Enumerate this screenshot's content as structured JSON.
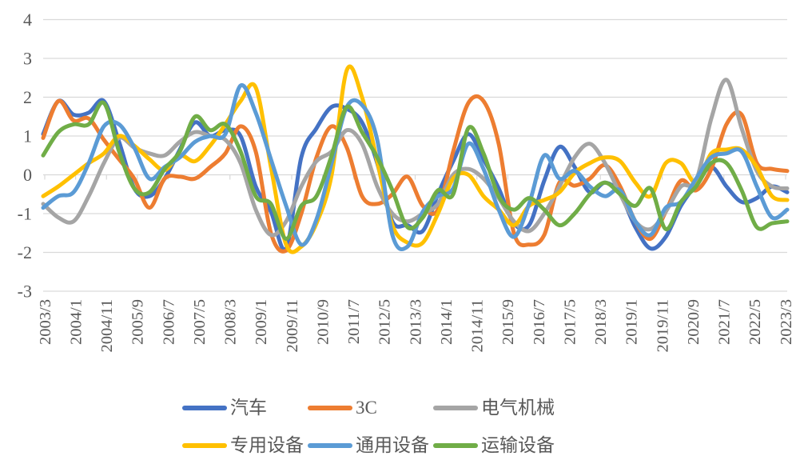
{
  "chart_data": {
    "type": "line",
    "title": "",
    "xlabel": "",
    "ylabel": "",
    "x_start": "2003/3",
    "x_step_months": 5,
    "x_tick_labels": [
      "2003/3",
      "2004/1",
      "2004/11",
      "2005/9",
      "2006/7",
      "2007/5",
      "2008/3",
      "2009/1",
      "2009/11",
      "2010/9",
      "2011/7",
      "2012/5",
      "2013/3",
      "2014/1",
      "2014/11",
      "2015/9",
      "2016/7",
      "2017/5",
      "2018/3",
      "2019/1",
      "2019/11",
      "2020/9",
      "2021/7",
      "2022/5",
      "2023/3"
    ],
    "y_ticks": [
      4,
      3,
      2,
      1,
      0,
      -1,
      -2,
      -3
    ],
    "ylim": [
      -3,
      4
    ],
    "grid": true,
    "smooth": true,
    "legend_position": "bottom",
    "axis_text_color": "#595959",
    "grid_color": "#D9D9D9",
    "series": [
      {
        "name": "汽车",
        "color": "#4472C4",
        "values": [
          1.05,
          1.9,
          1.55,
          1.6,
          1.9,
          0.85,
          -0.35,
          -0.55,
          -0.1,
          0.65,
          1.35,
          1.0,
          1.15,
          1.0,
          -0.3,
          -0.95,
          -1.9,
          0.45,
          1.2,
          1.75,
          1.7,
          1.35,
          0.3,
          -1.2,
          -1.3,
          -1.45,
          -0.5,
          0.35,
          1.05,
          0.4,
          -0.35,
          -1.25,
          -1.3,
          -0.15,
          0.72,
          0.2,
          -0.45,
          -0.2,
          -0.5,
          -1.35,
          -1.9,
          -1.6,
          -0.8,
          -0.25,
          0.2,
          -0.3,
          -0.7,
          -0.6,
          -0.3,
          -0.45
        ]
      },
      {
        "name": "3C",
        "color": "#ED7D31",
        "values": [
          0.95,
          1.9,
          1.4,
          1.45,
          0.9,
          0.4,
          -0.1,
          -0.85,
          -0.1,
          -0.05,
          -0.1,
          0.2,
          0.55,
          1.25,
          0.6,
          -1.5,
          -1.95,
          -1.0,
          0.45,
          1.25,
          0.7,
          -0.55,
          -0.75,
          -0.5,
          -0.05,
          -0.8,
          -0.9,
          0.6,
          1.85,
          1.9,
          0.8,
          -1.5,
          -1.8,
          -1.55,
          -0.2,
          -0.28,
          -0.1,
          0.25,
          -0.3,
          -1.2,
          -1.65,
          -0.95,
          -0.15,
          -0.4,
          0.15,
          1.3,
          1.55,
          0.3,
          0.15,
          0.1
        ]
      },
      {
        "name": "电气机械",
        "color": "#A5A5A5",
        "values": [
          -0.75,
          -1.1,
          -1.2,
          -0.55,
          0.3,
          0.95,
          0.7,
          0.55,
          0.5,
          0.85,
          1.1,
          1.0,
          0.9,
          0.3,
          -0.9,
          -1.55,
          -1.2,
          -0.3,
          0.35,
          0.6,
          1.15,
          0.8,
          -0.3,
          -1.0,
          -1.2,
          -1.0,
          -0.75,
          0.0,
          0.15,
          -0.1,
          -0.6,
          -1.2,
          -1.45,
          -1.0,
          -0.3,
          0.45,
          0.8,
          0.3,
          -0.5,
          -1.2,
          -1.4,
          -0.95,
          -0.3,
          -0.15,
          1.45,
          2.45,
          1.2,
          0.1,
          -0.3,
          -0.35
        ]
      },
      {
        "name": "专用设备",
        "color": "#FFC000",
        "values": [
          -0.55,
          -0.3,
          0.0,
          0.3,
          0.55,
          1.0,
          0.75,
          0.4,
          0.12,
          0.5,
          0.35,
          0.75,
          1.3,
          1.9,
          2.25,
          0.2,
          -1.8,
          -1.85,
          -1.25,
          0.0,
          2.7,
          2.0,
          0.35,
          -1.3,
          -1.75,
          -1.75,
          -1.0,
          -0.1,
          0.0,
          -0.55,
          -0.9,
          -1.3,
          -0.8,
          -0.65,
          -0.45,
          0.05,
          0.3,
          0.45,
          0.35,
          -0.2,
          -0.55,
          0.3,
          0.3,
          -0.2,
          0.55,
          0.65,
          0.65,
          0.2,
          -0.55,
          -0.65
        ]
      },
      {
        "name": "通用设备",
        "color": "#5B9BD5",
        "values": [
          -0.85,
          -0.55,
          -0.45,
          0.3,
          1.25,
          1.3,
          0.7,
          -0.1,
          0.2,
          0.45,
          0.85,
          1.0,
          1.05,
          2.3,
          1.6,
          0.4,
          -0.8,
          -1.8,
          -1.15,
          0.3,
          1.75,
          1.8,
          0.9,
          -1.55,
          -1.85,
          -0.95,
          -0.55,
          -0.35,
          0.8,
          0.15,
          -0.9,
          -1.6,
          -0.75,
          0.5,
          -0.1,
          0.1,
          -0.3,
          -0.55,
          -0.4,
          -1.2,
          -1.55,
          -0.85,
          -0.7,
          -0.1,
          0.45,
          0.55,
          0.6,
          -0.3,
          -1.1,
          -0.9
        ]
      },
      {
        "name": "运输设备",
        "color": "#70AD47",
        "values": [
          0.5,
          1.1,
          1.3,
          1.3,
          1.85,
          0.6,
          -0.35,
          -0.45,
          0.15,
          0.6,
          1.5,
          1.15,
          1.3,
          0.6,
          -0.55,
          -0.75,
          -1.65,
          -0.8,
          -0.55,
          0.5,
          1.75,
          1.1,
          0.45,
          -0.4,
          -1.35,
          -1.1,
          -0.4,
          -0.5,
          1.2,
          0.55,
          -0.55,
          -0.9,
          -0.6,
          -0.9,
          -1.3,
          -1.0,
          -0.5,
          -0.2,
          -0.5,
          -0.8,
          -0.35,
          -1.4,
          -0.7,
          -0.3,
          0.3,
          0.3,
          -0.4,
          -1.35,
          -1.25,
          -1.2
        ]
      }
    ]
  },
  "legend": {
    "rows": [
      [
        "汽车",
        "3C",
        "电气机械"
      ],
      [
        "专用设备",
        "通用设备",
        "运输设备"
      ]
    ]
  }
}
